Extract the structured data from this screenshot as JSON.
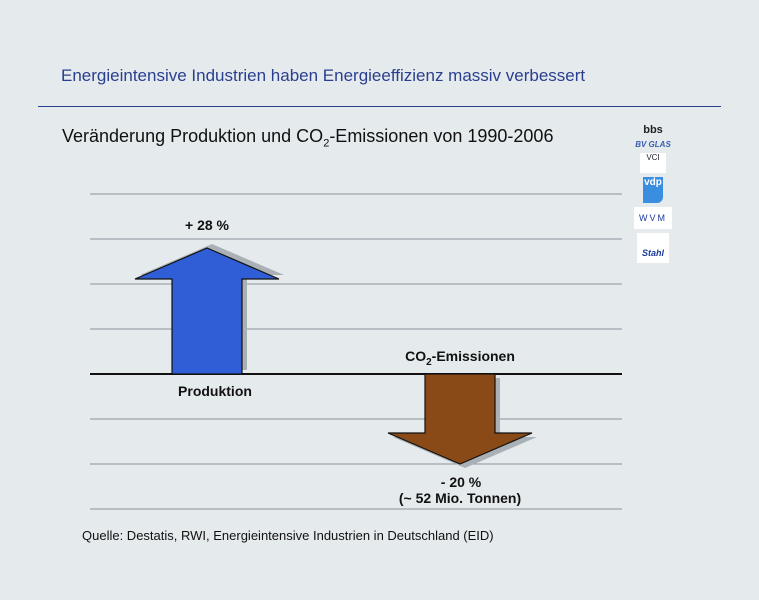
{
  "headline": "Energieintensive Industrien haben Energieeffizienz massiv verbessert",
  "subtitle": {
    "before": "Veränderung Produktion und CO",
    "sub": "2",
    "after": "-Emissionen von 1990-2006"
  },
  "source": "Quelle: Destatis, RWI, Energieintensive Industrien in Deutschland (EID)",
  "logos": [
    "bbs",
    "BV GLAS",
    "VCI",
    "vdp",
    "WVM",
    "Stahl"
  ],
  "chart_data": {
    "type": "bar",
    "categories": [
      "Produktion",
      "CO2-Emissionen"
    ],
    "values": [
      28,
      -20
    ],
    "units": "%",
    "labels": {
      "production_value": "+ 28 %",
      "production_name": "Produktion",
      "co2_name_before": "CO",
      "co2_name_sub": "2",
      "co2_name_after": "-Emissionen",
      "co2_value": "- 20 %",
      "co2_note": "(~ 52 Mio. Tonnen)"
    },
    "colors": {
      "production": "#2f5ed6",
      "co2": "#8a4a17",
      "shadow": "#a9b0b6"
    },
    "grid": true
  }
}
